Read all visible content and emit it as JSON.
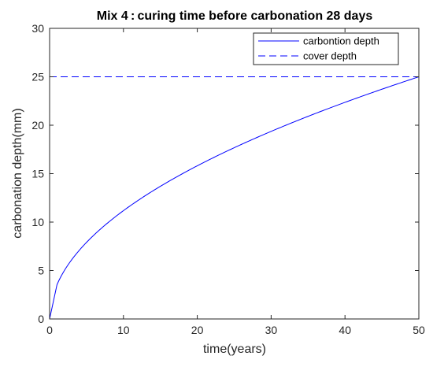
{
  "chart_data": {
    "type": "line",
    "title": "Mix 4 : curing time before carbonation 28 days",
    "xlabel": "time(years)",
    "ylabel": "carbonation depth(mm)",
    "xlim": [
      0,
      50
    ],
    "ylim": [
      0,
      30
    ],
    "xticks": [
      0,
      10,
      20,
      30,
      40,
      50
    ],
    "yticks": [
      0,
      5,
      10,
      15,
      20,
      25,
      30
    ],
    "grid": false,
    "legend_position": "top-right",
    "series": [
      {
        "name": "carbontion depth",
        "style": "solid",
        "color": "#0000ff",
        "x": [
          0,
          1,
          2,
          3,
          4,
          5,
          6,
          8,
          10,
          12,
          15,
          18,
          20,
          25,
          30,
          35,
          40,
          45,
          50
        ],
        "y": [
          0,
          3.54,
          5.0,
          6.12,
          7.07,
          7.91,
          8.66,
          10.0,
          11.18,
          12.25,
          13.69,
          15.0,
          15.81,
          17.68,
          19.36,
          20.92,
          22.36,
          23.72,
          25.0
        ]
      },
      {
        "name": "cover depth",
        "style": "dashed",
        "color": "#0000ff",
        "x": [
          0,
          50
        ],
        "y": [
          25,
          25
        ]
      }
    ]
  }
}
